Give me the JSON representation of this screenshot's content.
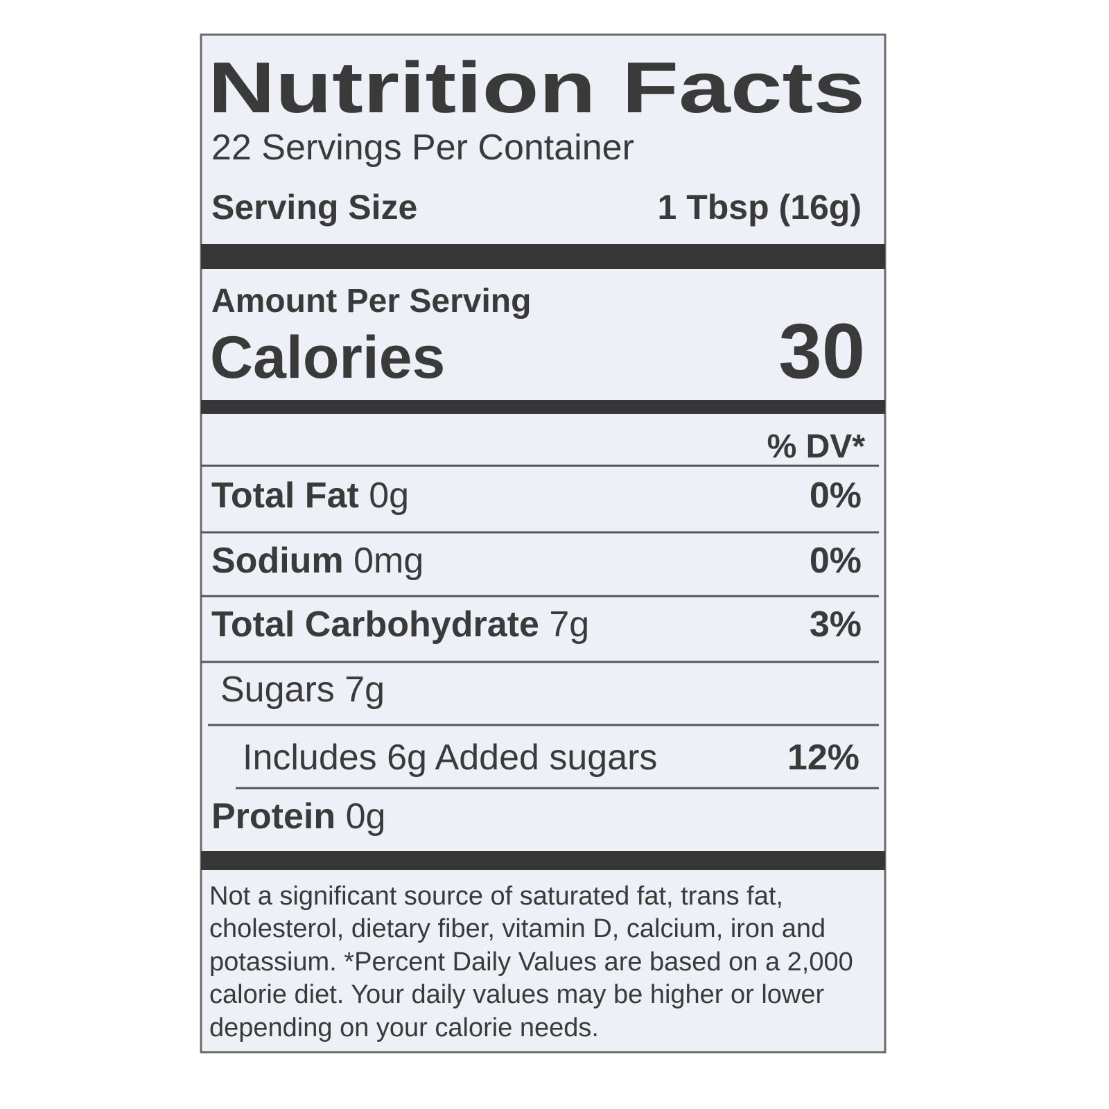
{
  "title": "Nutrition Facts",
  "servings": "22 Servings Per Container",
  "serving_size": {
    "label": "Serving Size",
    "value": "1 Tbsp (16g)"
  },
  "amount_per_serving": "Amount Per Serving",
  "calories": {
    "label": "Calories",
    "value": "30"
  },
  "dv_header": "% DV*",
  "rows": [
    {
      "name": "Total Fat",
      "amount": "0g",
      "dv": "0%"
    },
    {
      "name": "Sodium",
      "amount": "0mg",
      "dv": "0%"
    },
    {
      "name": "Total Carbohydrate",
      "amount": "7g",
      "dv": "3%"
    },
    {
      "name": "Sugars 7g"
    },
    {
      "name": "Includes 6g Added sugars",
      "dv": "12%"
    },
    {
      "name": "Protein",
      "amount": "0g"
    }
  ],
  "footnote": [
    "Not a significant source of saturated fat, trans fat,",
    "cholesterol, dietary fiber, vitamin D, calcium, iron and",
    "potassium. *Percent Daily Values are based on a 2,000",
    "calorie diet. Your daily values may be higher or lower",
    "depending on your calorie needs."
  ]
}
